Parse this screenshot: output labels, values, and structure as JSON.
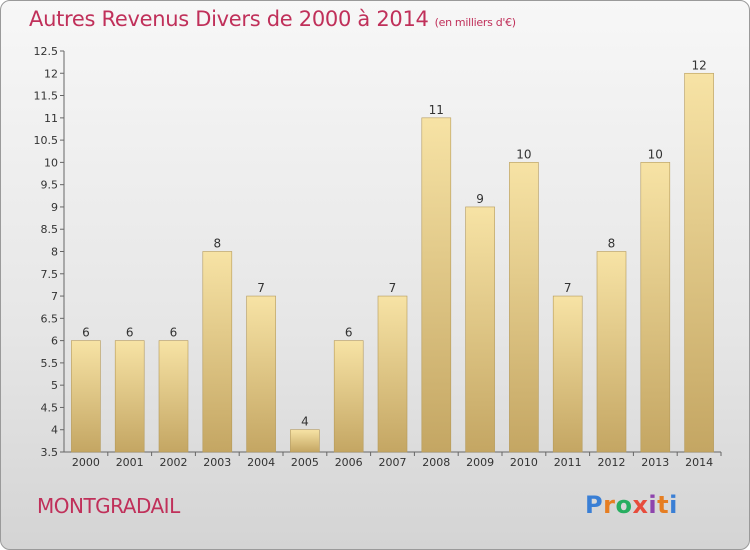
{
  "title": "Autres Revenus Divers de 2000 à 2014",
  "subtitle": "(en milliers d'€)",
  "commune": "MONTGRADAIL",
  "logo": {
    "letters": [
      "P",
      "r",
      "o",
      "x",
      "i",
      "t",
      "i"
    ],
    "colors": [
      "#3a7fd5",
      "#e67e22",
      "#27ae60",
      "#e74c3c",
      "#8e44ad",
      "#e67e22",
      "#3a7fd5"
    ]
  },
  "colors": {
    "title": "#c0305a",
    "bar_top": "#f7e3a5",
    "bar_bottom": "#c4a663",
    "bar_border": "#b59a5a"
  },
  "chart_data": {
    "type": "bar",
    "categories": [
      "2000",
      "2001",
      "2002",
      "2003",
      "2004",
      "2005",
      "2006",
      "2007",
      "2008",
      "2009",
      "2010",
      "2011",
      "2012",
      "2013",
      "2014"
    ],
    "values": [
      6,
      6,
      6,
      8,
      7,
      4,
      6,
      7,
      11,
      9,
      10,
      7,
      8,
      10,
      12
    ],
    "ylim": [
      3.5,
      12.5
    ],
    "yticks": [
      "3.5",
      "4",
      "4.5",
      "5",
      "5.5",
      "6",
      "6.5",
      "7",
      "7.5",
      "8",
      "8.5",
      "9",
      "9.5",
      "10",
      "10.5",
      "11",
      "11.5",
      "12",
      "12.5"
    ],
    "grid": false
  }
}
